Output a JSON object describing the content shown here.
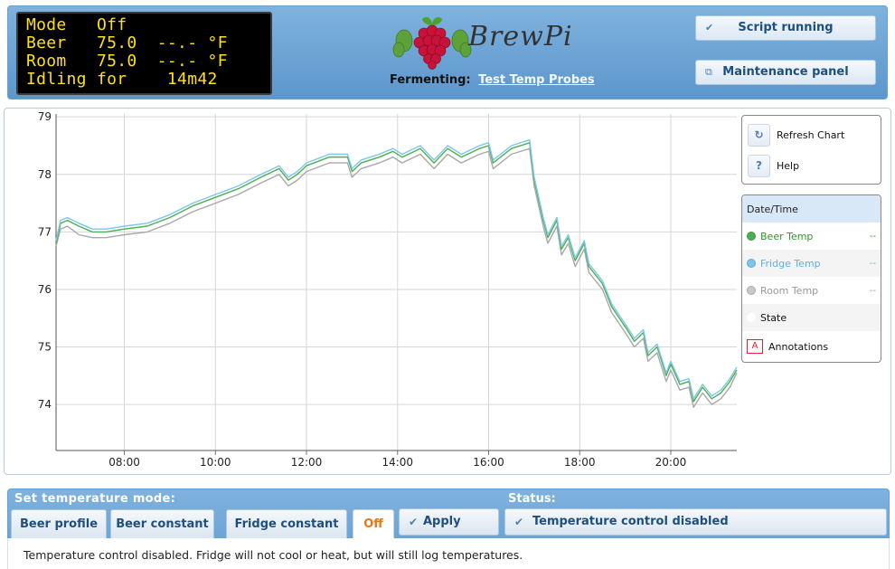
{
  "lcd": {
    "lines": [
      "Mode   Off",
      "Beer   75.0  --.- °F",
      "Room   75.0  --.- °F",
      "Idling for    14m42"
    ]
  },
  "brand": {
    "name": "BrewPi",
    "fermenting_label": "Fermenting:",
    "fermenting_link": "Test Temp Probes"
  },
  "header_buttons": {
    "script": "Script running",
    "maintenance": "Maintenance panel"
  },
  "chart_controls": {
    "refresh": "Refresh Chart",
    "help": "Help",
    "help_glyph": "?"
  },
  "legend": {
    "date_time": "Date/Time",
    "beer_temp": "Beer Temp",
    "fridge_temp": "Fridge Temp",
    "room_temp": "Room Temp",
    "state": "State",
    "annotations": "Annotations",
    "beer_value": "--",
    "fridge_value": "--",
    "room_value": "--",
    "annotation_glyph": "A"
  },
  "colors": {
    "beer": "#4caf50",
    "fridge": "#7cc7ea",
    "room": "#a8a8a8",
    "accent": "#6ca5d6",
    "lcd_text": "#ffe01a"
  },
  "chart_data": {
    "type": "line",
    "xlabel": "",
    "ylabel": "",
    "xlim": [
      6.5,
      21.45
    ],
    "ylim": [
      73.2,
      79.05
    ],
    "x_ticks": [
      "08:00",
      "10:00",
      "12:00",
      "14:00",
      "16:00",
      "18:00",
      "20:00"
    ],
    "x_tick_values": [
      8,
      10,
      12,
      14,
      16,
      18,
      20
    ],
    "y_ticks": [
      74,
      75,
      76,
      77,
      78,
      79
    ],
    "grid": true,
    "series": [
      {
        "name": "Beer Temp",
        "x": [
          6.5,
          6.6,
          6.75,
          7.0,
          7.3,
          7.6,
          8.0,
          8.5,
          9.0,
          9.5,
          10.0,
          10.5,
          11.0,
          11.4,
          11.6,
          11.8,
          12.0,
          12.5,
          12.9,
          13.0,
          13.2,
          13.6,
          13.9,
          14.1,
          14.5,
          14.8,
          15.1,
          15.4,
          15.8,
          16.0,
          16.1,
          16.5,
          16.9,
          17.0,
          17.2,
          17.3,
          17.5,
          17.6,
          17.75,
          17.9,
          18.1,
          18.2,
          18.5,
          18.7,
          19.0,
          19.2,
          19.4,
          19.5,
          19.7,
          19.9,
          20.0,
          20.2,
          20.4,
          20.5,
          20.7,
          20.9,
          21.1,
          21.3,
          21.45
        ],
        "values": [
          76.8,
          77.15,
          77.2,
          77.1,
          77.0,
          77.0,
          77.05,
          77.1,
          77.25,
          77.45,
          77.6,
          77.75,
          77.95,
          78.1,
          77.9,
          78.0,
          78.15,
          78.3,
          78.3,
          78.05,
          78.2,
          78.3,
          78.4,
          78.3,
          78.45,
          78.2,
          78.45,
          78.3,
          78.45,
          78.5,
          78.2,
          78.45,
          78.55,
          77.9,
          77.2,
          76.9,
          77.2,
          76.7,
          76.9,
          76.5,
          76.8,
          76.4,
          76.1,
          75.7,
          75.35,
          75.1,
          75.25,
          74.85,
          75.0,
          74.5,
          74.7,
          74.35,
          74.4,
          74.05,
          74.3,
          74.1,
          74.2,
          74.4,
          74.6
        ]
      },
      {
        "name": "Fridge Temp",
        "x": [
          6.5,
          6.6,
          6.75,
          7.0,
          7.3,
          7.6,
          8.0,
          8.5,
          9.0,
          9.5,
          10.0,
          10.5,
          11.0,
          11.4,
          11.6,
          11.8,
          12.0,
          12.5,
          12.9,
          13.0,
          13.2,
          13.6,
          13.9,
          14.1,
          14.5,
          14.8,
          15.1,
          15.4,
          15.8,
          16.0,
          16.1,
          16.5,
          16.9,
          17.0,
          17.2,
          17.3,
          17.5,
          17.6,
          17.75,
          17.9,
          18.1,
          18.2,
          18.5,
          18.7,
          19.0,
          19.2,
          19.4,
          19.5,
          19.7,
          19.9,
          20.0,
          20.2,
          20.4,
          20.5,
          20.7,
          20.9,
          21.1,
          21.3,
          21.45
        ],
        "values": [
          76.85,
          77.2,
          77.25,
          77.15,
          77.05,
          77.05,
          77.1,
          77.15,
          77.3,
          77.5,
          77.65,
          77.8,
          78.0,
          78.15,
          77.95,
          78.05,
          78.2,
          78.35,
          78.35,
          78.1,
          78.25,
          78.35,
          78.45,
          78.35,
          78.5,
          78.25,
          78.5,
          78.35,
          78.5,
          78.55,
          78.25,
          78.5,
          78.6,
          77.95,
          77.25,
          76.95,
          77.25,
          76.75,
          76.95,
          76.55,
          76.85,
          76.45,
          76.15,
          75.75,
          75.4,
          75.15,
          75.3,
          74.9,
          75.05,
          74.55,
          74.75,
          74.4,
          74.45,
          74.1,
          74.35,
          74.15,
          74.25,
          74.45,
          74.65
        ]
      },
      {
        "name": "Room Temp",
        "x": [
          6.5,
          6.6,
          6.75,
          7.0,
          7.3,
          7.6,
          8.0,
          8.5,
          9.0,
          9.5,
          10.0,
          10.5,
          11.0,
          11.4,
          11.6,
          11.8,
          12.0,
          12.5,
          12.9,
          13.0,
          13.2,
          13.6,
          13.9,
          14.1,
          14.5,
          14.8,
          15.1,
          15.4,
          15.8,
          16.0,
          16.1,
          16.5,
          16.9,
          17.0,
          17.2,
          17.3,
          17.5,
          17.6,
          17.75,
          17.9,
          18.1,
          18.2,
          18.5,
          18.7,
          19.0,
          19.2,
          19.4,
          19.5,
          19.7,
          19.9,
          20.0,
          20.2,
          20.4,
          20.5,
          20.7,
          20.9,
          21.1,
          21.3,
          21.45
        ],
        "values": [
          76.75,
          77.05,
          77.1,
          76.95,
          76.9,
          76.9,
          76.95,
          77.0,
          77.15,
          77.35,
          77.5,
          77.65,
          77.85,
          78.0,
          77.8,
          77.9,
          78.05,
          78.2,
          78.2,
          77.95,
          78.1,
          78.2,
          78.3,
          78.2,
          78.35,
          78.1,
          78.35,
          78.2,
          78.35,
          78.4,
          78.1,
          78.35,
          78.45,
          77.8,
          77.1,
          76.8,
          77.1,
          76.6,
          76.8,
          76.4,
          76.7,
          76.3,
          76.0,
          75.6,
          75.25,
          75.0,
          75.15,
          74.75,
          74.9,
          74.4,
          74.6,
          74.25,
          74.3,
          73.95,
          74.2,
          74.0,
          74.1,
          74.3,
          74.55
        ]
      }
    ]
  },
  "control_panel": {
    "mode_label": "Set temperature mode:",
    "status_label": "Status:",
    "tabs": [
      "Beer profile",
      "Beer constant",
      "Fridge constant",
      "Off"
    ],
    "apply": "Apply",
    "status": "Temperature control disabled",
    "description": "Temperature control disabled. Fridge will not cool or heat, but will still log temperatures."
  }
}
